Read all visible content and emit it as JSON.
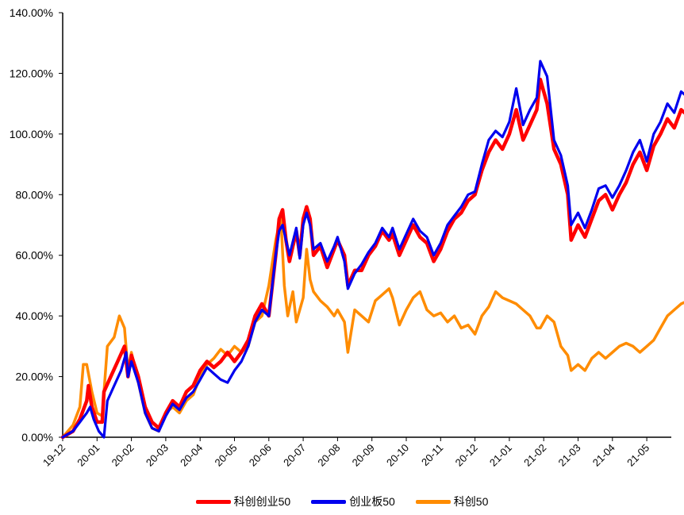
{
  "chart_data": {
    "type": "line",
    "title": "",
    "xlabel": "",
    "ylabel": "",
    "ylim": [
      0,
      140
    ],
    "yticks": [
      "0.00%",
      "20.00%",
      "40.00%",
      "60.00%",
      "80.00%",
      "100.00%",
      "120.00%",
      "140.00%"
    ],
    "x_tick_labels": [
      "19-12",
      "20-01",
      "20-02",
      "20-03",
      "20-04",
      "20-05",
      "20-06",
      "20-07",
      "20-08",
      "20-09",
      "20-10",
      "20-11",
      "20-12",
      "21-01",
      "21-02",
      "21-03",
      "21-04",
      "21-05"
    ],
    "grid": false,
    "legend_position": "bottom",
    "series": [
      {
        "name": "科创创业50",
        "color": "#ff0000",
        "values": [
          [
            0,
            0
          ],
          [
            0.3,
            2
          ],
          [
            0.5,
            6
          ],
          [
            0.7,
            12
          ],
          [
            0.75,
            17
          ],
          [
            0.85,
            10
          ],
          [
            1,
            5
          ],
          [
            1.15,
            5
          ],
          [
            1.2,
            15
          ],
          [
            1.4,
            20
          ],
          [
            1.6,
            25
          ],
          [
            1.8,
            30
          ],
          [
            1.9,
            20
          ],
          [
            2.0,
            27
          ],
          [
            2.2,
            20
          ],
          [
            2.4,
            10
          ],
          [
            2.6,
            5
          ],
          [
            2.8,
            3
          ],
          [
            3.0,
            8
          ],
          [
            3.2,
            12
          ],
          [
            3.4,
            10
          ],
          [
            3.6,
            15
          ],
          [
            3.8,
            17
          ],
          [
            4.0,
            22
          ],
          [
            4.2,
            25
          ],
          [
            4.4,
            23
          ],
          [
            4.6,
            25
          ],
          [
            4.8,
            28
          ],
          [
            5.0,
            25
          ],
          [
            5.2,
            28
          ],
          [
            5.4,
            32
          ],
          [
            5.6,
            40
          ],
          [
            5.8,
            44
          ],
          [
            6.0,
            40
          ],
          [
            6.2,
            60
          ],
          [
            6.3,
            72
          ],
          [
            6.4,
            75
          ],
          [
            6.5,
            65
          ],
          [
            6.6,
            58
          ],
          [
            6.8,
            68
          ],
          [
            6.9,
            60
          ],
          [
            7.0,
            72
          ],
          [
            7.1,
            76
          ],
          [
            7.2,
            72
          ],
          [
            7.3,
            60
          ],
          [
            7.5,
            63
          ],
          [
            7.7,
            56
          ],
          [
            7.9,
            62
          ],
          [
            8.0,
            65
          ],
          [
            8.2,
            60
          ],
          [
            8.3,
            50
          ],
          [
            8.5,
            55
          ],
          [
            8.7,
            55
          ],
          [
            8.9,
            60
          ],
          [
            9.1,
            63
          ],
          [
            9.3,
            68
          ],
          [
            9.5,
            65
          ],
          [
            9.6,
            67
          ],
          [
            9.8,
            60
          ],
          [
            10.0,
            65
          ],
          [
            10.2,
            70
          ],
          [
            10.4,
            66
          ],
          [
            10.6,
            64
          ],
          [
            10.8,
            58
          ],
          [
            11.0,
            62
          ],
          [
            11.2,
            68
          ],
          [
            11.4,
            72
          ],
          [
            11.6,
            74
          ],
          [
            11.8,
            78
          ],
          [
            12.0,
            80
          ],
          [
            12.2,
            88
          ],
          [
            12.4,
            94
          ],
          [
            12.6,
            98
          ],
          [
            12.8,
            95
          ],
          [
            13.0,
            100
          ],
          [
            13.2,
            108
          ],
          [
            13.4,
            98
          ],
          [
            13.6,
            103
          ],
          [
            13.8,
            108
          ],
          [
            13.9,
            118
          ],
          [
            14.1,
            110
          ],
          [
            14.3,
            95
          ],
          [
            14.5,
            90
          ],
          [
            14.7,
            80
          ],
          [
            14.8,
            65
          ],
          [
            15.0,
            70
          ],
          [
            15.2,
            66
          ],
          [
            15.4,
            72
          ],
          [
            15.6,
            78
          ],
          [
            15.8,
            80
          ],
          [
            16.0,
            75
          ],
          [
            16.2,
            80
          ],
          [
            16.4,
            84
          ],
          [
            16.6,
            90
          ],
          [
            16.8,
            94
          ],
          [
            17.0,
            88
          ],
          [
            17.2,
            96
          ],
          [
            17.4,
            100
          ],
          [
            17.6,
            105
          ],
          [
            17.8,
            102
          ],
          [
            18.0,
            108
          ],
          [
            18.2,
            106
          ],
          [
            18.4,
            104
          ],
          [
            18.55,
            110
          ]
        ]
      },
      {
        "name": "创业板50",
        "color": "#0000ee",
        "values": [
          [
            0,
            0
          ],
          [
            0.3,
            2
          ],
          [
            0.5,
            5
          ],
          [
            0.7,
            8
          ],
          [
            0.8,
            10
          ],
          [
            0.9,
            6
          ],
          [
            1.05,
            2
          ],
          [
            1.2,
            0
          ],
          [
            1.3,
            12
          ],
          [
            1.5,
            17
          ],
          [
            1.7,
            22
          ],
          [
            1.85,
            28
          ],
          [
            1.9,
            20
          ],
          [
            2.0,
            25
          ],
          [
            2.2,
            18
          ],
          [
            2.4,
            8
          ],
          [
            2.6,
            3
          ],
          [
            2.8,
            2
          ],
          [
            3.0,
            7
          ],
          [
            3.2,
            11
          ],
          [
            3.4,
            9
          ],
          [
            3.6,
            13
          ],
          [
            3.8,
            15
          ],
          [
            4.0,
            19
          ],
          [
            4.2,
            23
          ],
          [
            4.4,
            21
          ],
          [
            4.6,
            19
          ],
          [
            4.8,
            18
          ],
          [
            5.0,
            22
          ],
          [
            5.2,
            25
          ],
          [
            5.4,
            30
          ],
          [
            5.6,
            38
          ],
          [
            5.8,
            42
          ],
          [
            6.0,
            40
          ],
          [
            6.2,
            60
          ],
          [
            6.3,
            68
          ],
          [
            6.4,
            70
          ],
          [
            6.5,
            65
          ],
          [
            6.6,
            60
          ],
          [
            6.8,
            69
          ],
          [
            6.9,
            59
          ],
          [
            7.0,
            70
          ],
          [
            7.1,
            74
          ],
          [
            7.2,
            70
          ],
          [
            7.3,
            62
          ],
          [
            7.5,
            64
          ],
          [
            7.7,
            58
          ],
          [
            7.9,
            63
          ],
          [
            8.0,
            66
          ],
          [
            8.2,
            58
          ],
          [
            8.3,
            49
          ],
          [
            8.5,
            54
          ],
          [
            8.7,
            57
          ],
          [
            8.9,
            61
          ],
          [
            9.1,
            64
          ],
          [
            9.3,
            69
          ],
          [
            9.5,
            66
          ],
          [
            9.6,
            69
          ],
          [
            9.8,
            62
          ],
          [
            10.0,
            67
          ],
          [
            10.2,
            72
          ],
          [
            10.4,
            68
          ],
          [
            10.6,
            66
          ],
          [
            10.8,
            60
          ],
          [
            11.0,
            64
          ],
          [
            11.2,
            70
          ],
          [
            11.4,
            73
          ],
          [
            11.6,
            76
          ],
          [
            11.8,
            80
          ],
          [
            12.0,
            81
          ],
          [
            12.2,
            90
          ],
          [
            12.4,
            98
          ],
          [
            12.6,
            101
          ],
          [
            12.8,
            99
          ],
          [
            13.0,
            104
          ],
          [
            13.2,
            115
          ],
          [
            13.4,
            103
          ],
          [
            13.6,
            108
          ],
          [
            13.8,
            112
          ],
          [
            13.9,
            124
          ],
          [
            14.1,
            119
          ],
          [
            14.3,
            98
          ],
          [
            14.5,
            93
          ],
          [
            14.7,
            83
          ],
          [
            14.8,
            70
          ],
          [
            15.0,
            74
          ],
          [
            15.2,
            69
          ],
          [
            15.4,
            75
          ],
          [
            15.6,
            82
          ],
          [
            15.8,
            83
          ],
          [
            16.0,
            79
          ],
          [
            16.2,
            83
          ],
          [
            16.4,
            88
          ],
          [
            16.6,
            94
          ],
          [
            16.8,
            98
          ],
          [
            17.0,
            91
          ],
          [
            17.2,
            100
          ],
          [
            17.4,
            104
          ],
          [
            17.6,
            110
          ],
          [
            17.8,
            107
          ],
          [
            18.0,
            114
          ],
          [
            18.2,
            112
          ],
          [
            18.4,
            110
          ],
          [
            18.55,
            114
          ]
        ]
      },
      {
        "name": "科创50",
        "color": "#ff8c00",
        "values": [
          [
            0,
            0
          ],
          [
            0.3,
            4
          ],
          [
            0.5,
            10
          ],
          [
            0.6,
            24
          ],
          [
            0.7,
            24
          ],
          [
            0.85,
            15
          ],
          [
            1.0,
            8
          ],
          [
            1.15,
            7
          ],
          [
            1.3,
            30
          ],
          [
            1.5,
            33
          ],
          [
            1.65,
            40
          ],
          [
            1.8,
            36
          ],
          [
            1.9,
            22
          ],
          [
            2.0,
            28
          ],
          [
            2.2,
            18
          ],
          [
            2.4,
            8
          ],
          [
            2.6,
            3
          ],
          [
            2.8,
            2
          ],
          [
            3.0,
            8
          ],
          [
            3.2,
            10
          ],
          [
            3.4,
            8
          ],
          [
            3.6,
            12
          ],
          [
            3.8,
            14
          ],
          [
            4.0,
            20
          ],
          [
            4.2,
            24
          ],
          [
            4.4,
            26
          ],
          [
            4.6,
            29
          ],
          [
            4.8,
            27
          ],
          [
            5.0,
            30
          ],
          [
            5.2,
            28
          ],
          [
            5.4,
            30
          ],
          [
            5.6,
            38
          ],
          [
            5.8,
            40
          ],
          [
            6.0,
            50
          ],
          [
            6.2,
            65
          ],
          [
            6.3,
            70
          ],
          [
            6.35,
            72
          ],
          [
            6.45,
            50
          ],
          [
            6.55,
            40
          ],
          [
            6.7,
            48
          ],
          [
            6.8,
            38
          ],
          [
            7.0,
            46
          ],
          [
            7.1,
            62
          ],
          [
            7.2,
            52
          ],
          [
            7.3,
            48
          ],
          [
            7.5,
            45
          ],
          [
            7.7,
            43
          ],
          [
            7.9,
            40
          ],
          [
            8.0,
            42
          ],
          [
            8.2,
            38
          ],
          [
            8.3,
            28
          ],
          [
            8.5,
            42
          ],
          [
            8.7,
            40
          ],
          [
            8.9,
            38
          ],
          [
            9.1,
            45
          ],
          [
            9.3,
            47
          ],
          [
            9.5,
            49
          ],
          [
            9.6,
            46
          ],
          [
            9.8,
            37
          ],
          [
            10.0,
            42
          ],
          [
            10.2,
            46
          ],
          [
            10.4,
            48
          ],
          [
            10.6,
            42
          ],
          [
            10.8,
            40
          ],
          [
            11.0,
            41
          ],
          [
            11.2,
            38
          ],
          [
            11.4,
            40
          ],
          [
            11.6,
            36
          ],
          [
            11.8,
            37
          ],
          [
            12.0,
            34
          ],
          [
            12.2,
            40
          ],
          [
            12.4,
            43
          ],
          [
            12.6,
            48
          ],
          [
            12.8,
            46
          ],
          [
            13.0,
            45
          ],
          [
            13.2,
            44
          ],
          [
            13.4,
            42
          ],
          [
            13.6,
            40
          ],
          [
            13.8,
            36
          ],
          [
            13.9,
            36
          ],
          [
            14.1,
            40
          ],
          [
            14.3,
            38
          ],
          [
            14.5,
            30
          ],
          [
            14.7,
            27
          ],
          [
            14.8,
            22
          ],
          [
            15.0,
            24
          ],
          [
            15.2,
            22
          ],
          [
            15.4,
            26
          ],
          [
            15.6,
            28
          ],
          [
            15.8,
            26
          ],
          [
            16.0,
            28
          ],
          [
            16.2,
            30
          ],
          [
            16.4,
            31
          ],
          [
            16.6,
            30
          ],
          [
            16.8,
            28
          ],
          [
            17.0,
            30
          ],
          [
            17.2,
            32
          ],
          [
            17.4,
            36
          ],
          [
            17.6,
            40
          ],
          [
            17.8,
            42
          ],
          [
            18.0,
            44
          ],
          [
            18.2,
            45
          ],
          [
            18.4,
            43
          ],
          [
            18.55,
            49
          ]
        ]
      }
    ]
  }
}
